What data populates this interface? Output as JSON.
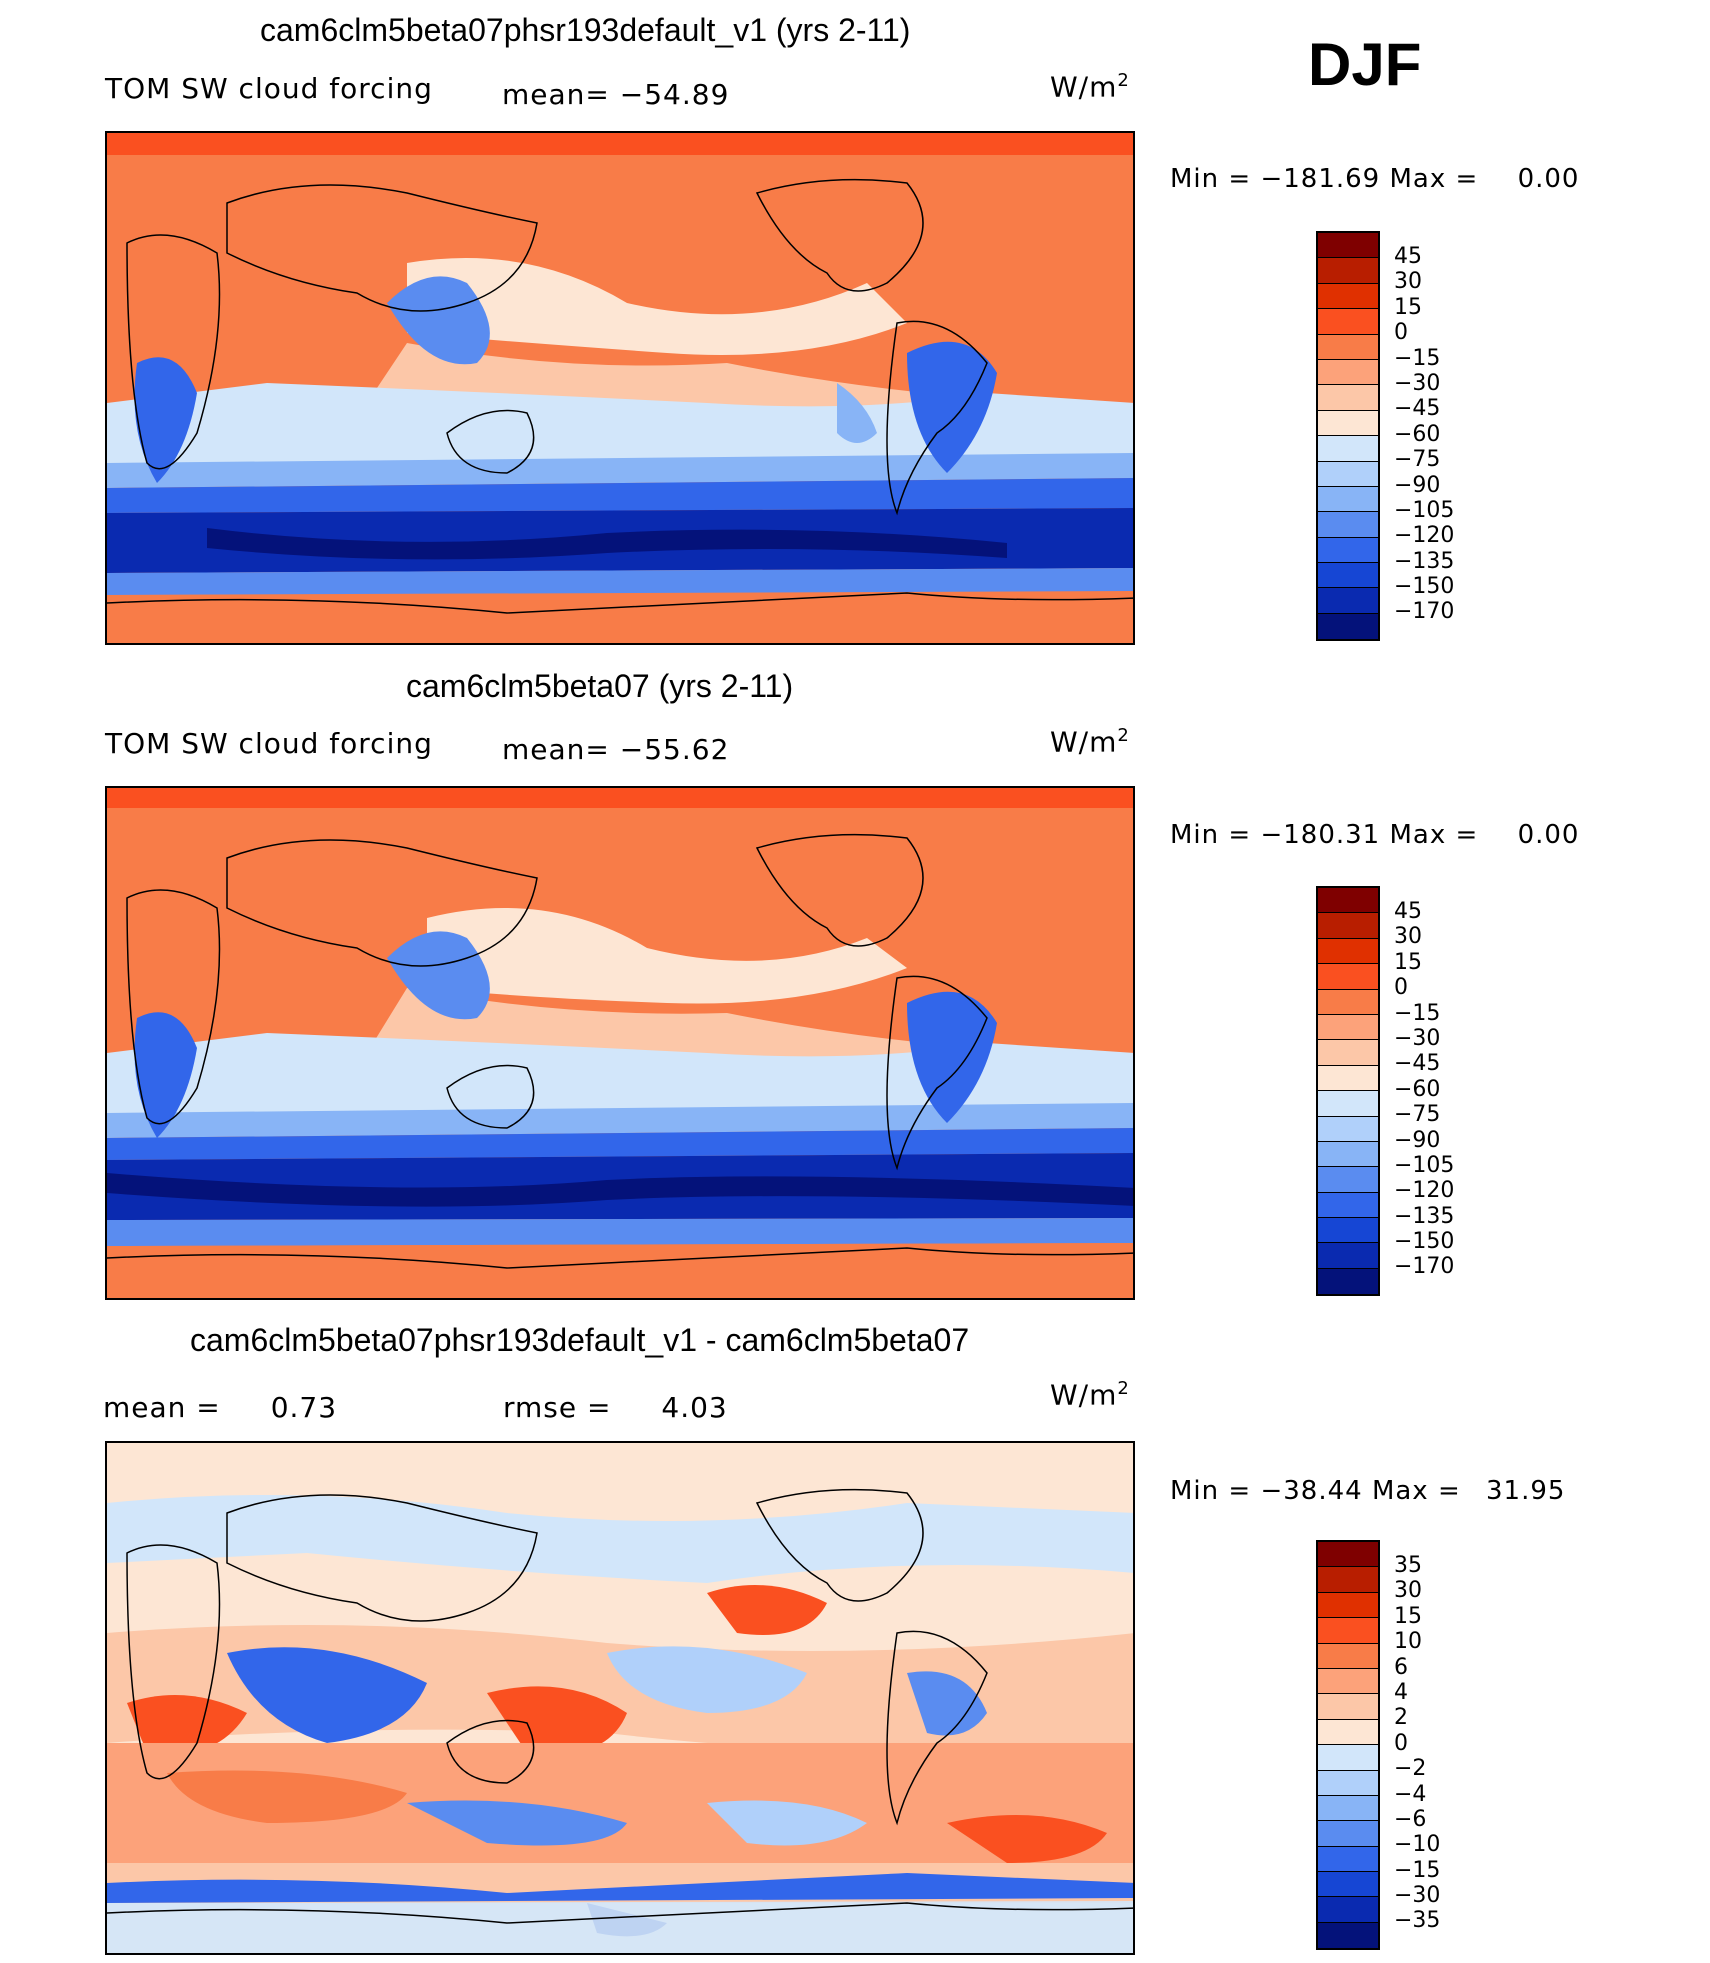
{
  "season": "DJF",
  "units": "W/m",
  "units_sup": "2",
  "panels": [
    {
      "title": "cam6clm5beta07phsr193default_v1 (yrs 2-11)",
      "variable": "TOM SW cloud forcing",
      "mean_label": "mean=",
      "mean_value": "−54.89",
      "min_label": "Min  =",
      "min_value": "−181.69",
      "max_label": "Max  =",
      "max_value": "0.00",
      "colorbar_labels": [
        "45",
        "30",
        "15",
        "0",
        "−15",
        "−30",
        "−45",
        "−60",
        "−75",
        "−90",
        "−105",
        "−120",
        "−135",
        "−150",
        "−170"
      ]
    },
    {
      "title": "cam6clm5beta07 (yrs 2-11)",
      "variable": "TOM SW cloud forcing",
      "mean_label": "mean=",
      "mean_value": "−55.62",
      "min_label": "Min  =",
      "min_value": "−180.31",
      "max_label": "Max  =",
      "max_value": "0.00",
      "colorbar_labels": [
        "45",
        "30",
        "15",
        "0",
        "−15",
        "−30",
        "−45",
        "−60",
        "−75",
        "−90",
        "−105",
        "−120",
        "−135",
        "−150",
        "−170"
      ]
    },
    {
      "title": "cam6clm5beta07phsr193default_v1 - cam6clm5beta07",
      "mean_label": "mean  =",
      "mean_value": "0.73",
      "rmse_label": "rmse  =",
      "rmse_value": "4.03",
      "min_label": "Min  =",
      "min_value": "−38.44",
      "max_label": "Max  =",
      "max_value": "31.95",
      "colorbar_labels": [
        "35",
        "30",
        "15",
        "10",
        "6",
        "4",
        "2",
        "0",
        "−2",
        "−4",
        "−6",
        "−10",
        "−15",
        "−30",
        "−35"
      ]
    }
  ],
  "colors": {
    "scale": [
      "#7f0000",
      "#b81e00",
      "#e03000",
      "#fa5020",
      "#f87c48",
      "#fca27a",
      "#fcc7a8",
      "#fde6d4",
      "#d2e6fa",
      "#b0d0fa",
      "#88b4f6",
      "#5a8cf0",
      "#3266ea",
      "#1646d4",
      "#0a2ab0",
      "#04127a"
    ]
  }
}
